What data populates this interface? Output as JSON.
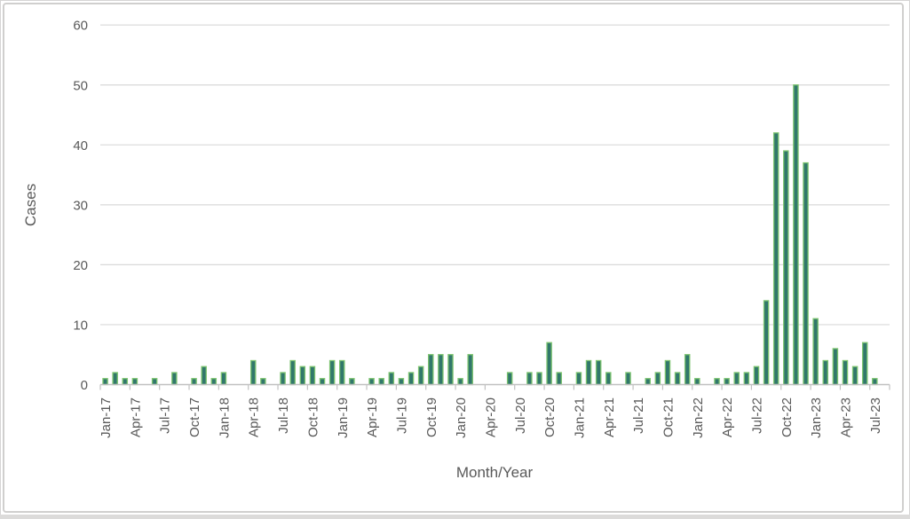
{
  "chart_data": {
    "type": "bar",
    "title": "",
    "xlabel": "Month/Year",
    "ylabel": "Cases",
    "ylim": [
      0,
      60
    ],
    "yticks": [
      0,
      10,
      20,
      30,
      40,
      50,
      60
    ],
    "x_tick_label_interval": 3,
    "grid": true,
    "legend": false,
    "categories": [
      "Jan-17",
      "Feb-17",
      "Mar-17",
      "Apr-17",
      "May-17",
      "Jun-17",
      "Jul-17",
      "Aug-17",
      "Sep-17",
      "Oct-17",
      "Nov-17",
      "Dec-17",
      "Jan-18",
      "Feb-18",
      "Mar-18",
      "Apr-18",
      "May-18",
      "Jun-18",
      "Jul-18",
      "Aug-18",
      "Sep-18",
      "Oct-18",
      "Nov-18",
      "Dec-18",
      "Jan-19",
      "Feb-19",
      "Mar-19",
      "Apr-19",
      "May-19",
      "Jun-19",
      "Jul-19",
      "Aug-19",
      "Sep-19",
      "Oct-19",
      "Nov-19",
      "Dec-19",
      "Jan-20",
      "Feb-20",
      "Mar-20",
      "Apr-20",
      "May-20",
      "Jun-20",
      "Jul-20",
      "Aug-20",
      "Sep-20",
      "Oct-20",
      "Nov-20",
      "Dec-20",
      "Jan-21",
      "Feb-21",
      "Mar-21",
      "Apr-21",
      "May-21",
      "Jun-21",
      "Jul-21",
      "Aug-21",
      "Sep-21",
      "Oct-21",
      "Nov-21",
      "Dec-21",
      "Jan-22",
      "Feb-22",
      "Mar-22",
      "Apr-22",
      "May-22",
      "Jun-22",
      "Jul-22",
      "Aug-22",
      "Sep-22",
      "Oct-22",
      "Nov-22",
      "Dec-22",
      "Jan-23",
      "Feb-23",
      "Mar-23",
      "Apr-23",
      "May-23",
      "Jun-23",
      "Jul-23"
    ],
    "values": [
      1,
      2,
      1,
      1,
      0,
      1,
      0,
      2,
      0,
      1,
      3,
      1,
      2,
      0,
      0,
      4,
      1,
      0,
      2,
      4,
      3,
      3,
      1,
      4,
      4,
      1,
      0,
      1,
      1,
      2,
      1,
      2,
      3,
      5,
      5,
      5,
      1,
      5,
      0,
      0,
      0,
      2,
      0,
      2,
      2,
      7,
      2,
      0,
      2,
      4,
      4,
      2,
      0,
      2,
      0,
      1,
      2,
      4,
      2,
      5,
      1,
      0,
      1,
      1,
      2,
      2,
      3,
      14,
      42,
      39,
      50,
      37,
      11,
      4,
      6,
      4,
      3,
      7,
      1
    ],
    "colors": {
      "bar_fill": "#31786b",
      "bar_border": "#7cc36f",
      "gridline": "#d9d9d9",
      "axis_line": "#c1c1c1",
      "label_text": "#595959",
      "frame_border": "#d0cfce"
    }
  }
}
